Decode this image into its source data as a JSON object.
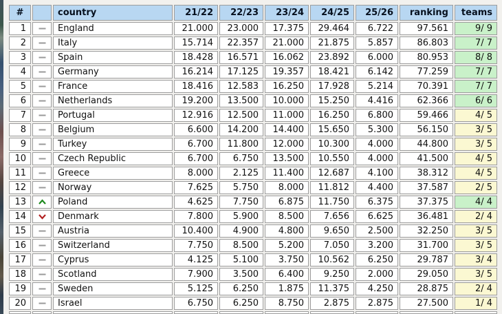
{
  "colors": {
    "page_bg": "#f2f1ee",
    "header_bg": "#b8d7f2",
    "cell_bg": "#ffffff",
    "border": "#9c9c9c",
    "teams_green": "#c9f1c9",
    "teams_yellow": "#fbf8d2",
    "dash_icon": "#999999",
    "up_arrow": "#1e8a1e",
    "down_arrow": "#b22222"
  },
  "icons": {
    "same": "dash-icon",
    "up": "up-arrow-icon",
    "down": "down-arrow-icon"
  },
  "chart_data": {
    "type": "table",
    "columns": [
      {
        "key": "rank",
        "label": "#"
      },
      {
        "key": "movement",
        "label": ""
      },
      {
        "key": "country",
        "label": "country"
      },
      {
        "key": "s2122",
        "label": "21/22"
      },
      {
        "key": "s2223",
        "label": "22/23"
      },
      {
        "key": "s2324",
        "label": "23/24"
      },
      {
        "key": "s2425",
        "label": "24/25"
      },
      {
        "key": "s2526",
        "label": "25/26"
      },
      {
        "key": "ranking",
        "label": "ranking"
      },
      {
        "key": "teams",
        "label": "teams"
      }
    ],
    "rows": [
      {
        "rank": "1",
        "movement": "same",
        "country": "England",
        "s2122": "21.000",
        "s2223": "23.000",
        "s2324": "17.375",
        "s2425": "29.464",
        "s2526": "6.722",
        "ranking": "97.561",
        "teams": "9/ 9",
        "teams_highlight": "green"
      },
      {
        "rank": "2",
        "movement": "same",
        "country": "Italy",
        "s2122": "15.714",
        "s2223": "22.357",
        "s2324": "21.000",
        "s2425": "21.875",
        "s2526": "5.857",
        "ranking": "86.803",
        "teams": "7/ 7",
        "teams_highlight": "green"
      },
      {
        "rank": "3",
        "movement": "same",
        "country": "Spain",
        "s2122": "18.428",
        "s2223": "16.571",
        "s2324": "16.062",
        "s2425": "23.892",
        "s2526": "6.000",
        "ranking": "80.953",
        "teams": "8/ 8",
        "teams_highlight": "green"
      },
      {
        "rank": "4",
        "movement": "same",
        "country": "Germany",
        "s2122": "16.214",
        "s2223": "17.125",
        "s2324": "19.357",
        "s2425": "18.421",
        "s2526": "6.142",
        "ranking": "77.259",
        "teams": "7/ 7",
        "teams_highlight": "green"
      },
      {
        "rank": "5",
        "movement": "same",
        "country": "France",
        "s2122": "18.416",
        "s2223": "12.583",
        "s2324": "16.250",
        "s2425": "17.928",
        "s2526": "5.214",
        "ranking": "70.391",
        "teams": "7/ 7",
        "teams_highlight": "green"
      },
      {
        "rank": "6",
        "movement": "same",
        "country": "Netherlands",
        "s2122": "19.200",
        "s2223": "13.500",
        "s2324": "10.000",
        "s2425": "15.250",
        "s2526": "4.416",
        "ranking": "62.366",
        "teams": "6/ 6",
        "teams_highlight": "green"
      },
      {
        "rank": "7",
        "movement": "same",
        "country": "Portugal",
        "s2122": "12.916",
        "s2223": "12.500",
        "s2324": "11.000",
        "s2425": "16.250",
        "s2526": "6.800",
        "ranking": "59.466",
        "teams": "4/ 5",
        "teams_highlight": "yellow"
      },
      {
        "rank": "8",
        "movement": "same",
        "country": "Belgium",
        "s2122": "6.600",
        "s2223": "14.200",
        "s2324": "14.400",
        "s2425": "15.650",
        "s2526": "5.300",
        "ranking": "56.150",
        "teams": "3/ 5",
        "teams_highlight": "yellow"
      },
      {
        "rank": "9",
        "movement": "same",
        "country": "Turkey",
        "s2122": "6.700",
        "s2223": "11.800",
        "s2324": "12.000",
        "s2425": "10.300",
        "s2526": "4.000",
        "ranking": "44.800",
        "teams": "3/ 5",
        "teams_highlight": "yellow"
      },
      {
        "rank": "10",
        "movement": "same",
        "country": "Czech Republic",
        "s2122": "6.700",
        "s2223": "6.750",
        "s2324": "13.500",
        "s2425": "10.550",
        "s2526": "4.000",
        "ranking": "41.500",
        "teams": "4/ 5",
        "teams_highlight": "yellow"
      },
      {
        "rank": "11",
        "movement": "same",
        "country": "Greece",
        "s2122": "8.000",
        "s2223": "2.125",
        "s2324": "11.400",
        "s2425": "12.687",
        "s2526": "4.100",
        "ranking": "38.312",
        "teams": "4/ 5",
        "teams_highlight": "yellow"
      },
      {
        "rank": "12",
        "movement": "same",
        "country": "Norway",
        "s2122": "7.625",
        "s2223": "5.750",
        "s2324": "8.000",
        "s2425": "11.812",
        "s2526": "4.400",
        "ranking": "37.587",
        "teams": "2/ 5",
        "teams_highlight": "yellow"
      },
      {
        "rank": "13",
        "movement": "up",
        "country": "Poland",
        "s2122": "4.625",
        "s2223": "7.750",
        "s2324": "6.875",
        "s2425": "11.750",
        "s2526": "6.375",
        "ranking": "37.375",
        "teams": "4/ 4",
        "teams_highlight": "green"
      },
      {
        "rank": "14",
        "movement": "down",
        "country": "Denmark",
        "s2122": "7.800",
        "s2223": "5.900",
        "s2324": "8.500",
        "s2425": "7.656",
        "s2526": "6.625",
        "ranking": "36.481",
        "teams": "2/ 4",
        "teams_highlight": "yellow"
      },
      {
        "rank": "15",
        "movement": "same",
        "country": "Austria",
        "s2122": "10.400",
        "s2223": "4.900",
        "s2324": "4.800",
        "s2425": "9.650",
        "s2526": "2.500",
        "ranking": "32.250",
        "teams": "3/ 5",
        "teams_highlight": "yellow"
      },
      {
        "rank": "16",
        "movement": "same",
        "country": "Switzerland",
        "s2122": "7.750",
        "s2223": "8.500",
        "s2324": "5.200",
        "s2425": "7.050",
        "s2526": "3.200",
        "ranking": "31.700",
        "teams": "3/ 5",
        "teams_highlight": "yellow"
      },
      {
        "rank": "17",
        "movement": "same",
        "country": "Cyprus",
        "s2122": "4.125",
        "s2223": "5.100",
        "s2324": "3.750",
        "s2425": "10.562",
        "s2526": "6.250",
        "ranking": "29.787",
        "teams": "3/ 4",
        "teams_highlight": "yellow"
      },
      {
        "rank": "18",
        "movement": "same",
        "country": "Scotland",
        "s2122": "7.900",
        "s2223": "3.500",
        "s2324": "6.400",
        "s2425": "9.250",
        "s2526": "2.000",
        "ranking": "29.050",
        "teams": "3/ 5",
        "teams_highlight": "yellow"
      },
      {
        "rank": "19",
        "movement": "same",
        "country": "Sweden",
        "s2122": "5.125",
        "s2223": "6.250",
        "s2324": "1.875",
        "s2425": "11.375",
        "s2526": "4.250",
        "ranking": "28.875",
        "teams": "2/ 4",
        "teams_highlight": "yellow"
      },
      {
        "rank": "20",
        "movement": "same",
        "country": "Israel",
        "s2122": "6.750",
        "s2223": "6.250",
        "s2324": "8.750",
        "s2425": "2.875",
        "s2526": "2.875",
        "ranking": "27.500",
        "teams": "1/ 4",
        "teams_highlight": "yellow"
      }
    ]
  }
}
